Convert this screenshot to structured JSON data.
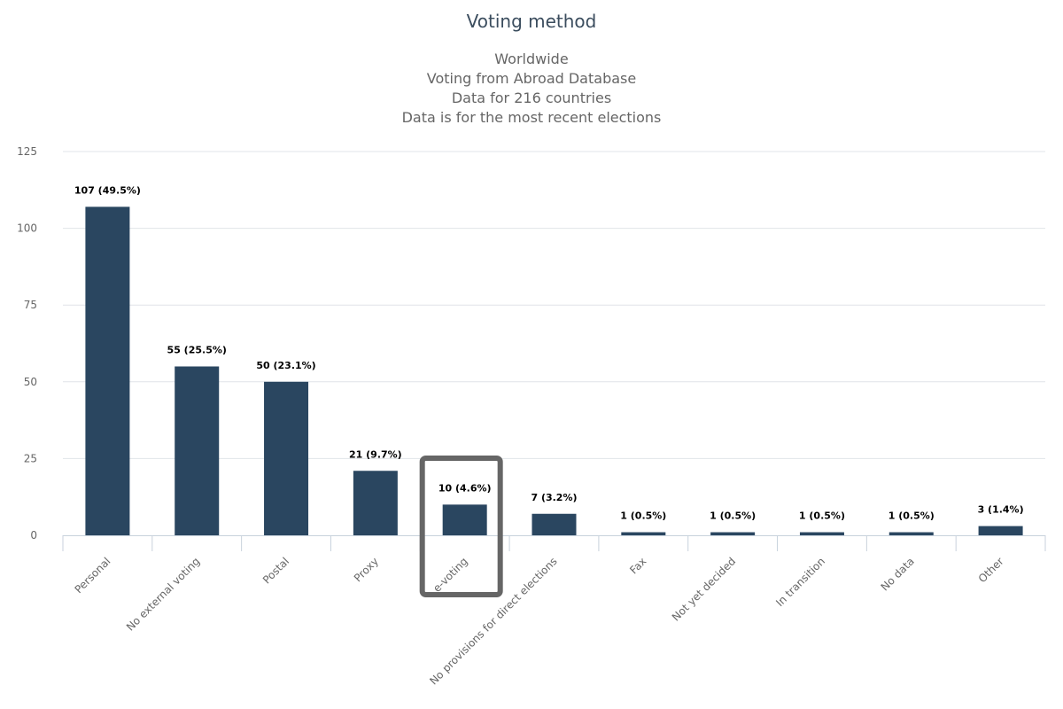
{
  "chart_data": {
    "type": "bar",
    "title": "Voting method",
    "subtitle": [
      "Worldwide",
      "Voting from Abroad Database",
      "Data for 216 countries",
      "Data is for the most recent elections"
    ],
    "xlabel": "",
    "ylabel": "",
    "ylim": [
      0,
      125
    ],
    "yticks": [
      0,
      25,
      50,
      75,
      100,
      125
    ],
    "grid": true,
    "categories": [
      "Personal",
      "No external voting",
      "Postal",
      "Proxy",
      "e-voting",
      "No provisions for direct elections",
      "Fax",
      "Not yet decided",
      "In transition",
      "No data",
      "Other"
    ],
    "values": [
      107,
      55,
      50,
      21,
      10,
      7,
      1,
      1,
      1,
      1,
      3
    ],
    "data_labels": [
      "107 (49.5%)",
      "55 (25.5%)",
      "50 (23.1%)",
      "21 (9.7%)",
      "10 (4.6%)",
      "7 (3.2%)",
      "1 (0.5%)",
      "1 (0.5%)",
      "1 (0.5%)",
      "1 (0.5%)",
      "3 (1.4%)"
    ],
    "highlighted_category": "e-voting",
    "colors": {
      "bar": "#2a4660",
      "grid": "#e0e4e8",
      "axis": "#c8d2dc",
      "highlight": "#666666"
    }
  }
}
